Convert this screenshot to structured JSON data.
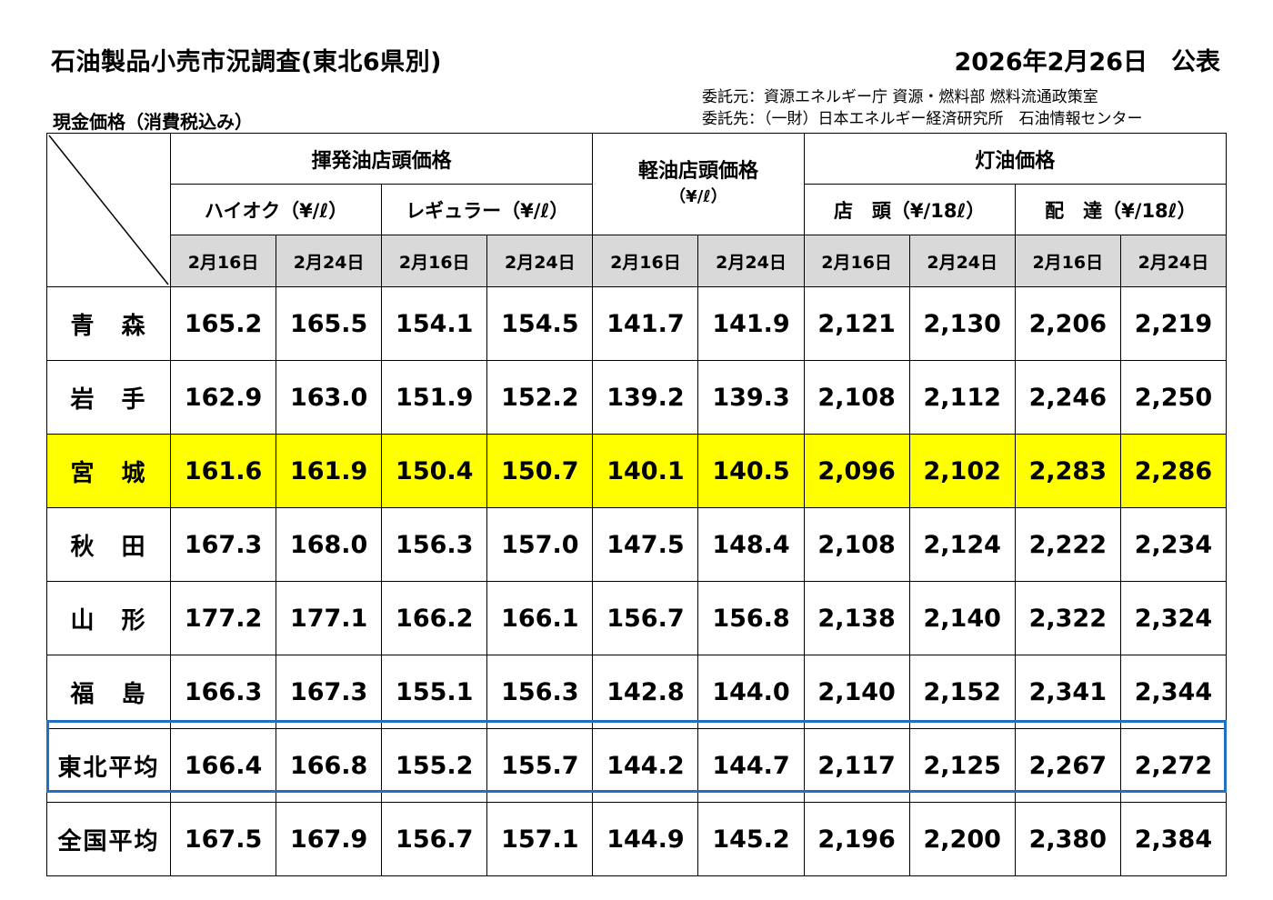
{
  "header": {
    "title": "石油製品小売市況調査(東北6県別)",
    "date": "2026年2月26日",
    "published": "公表",
    "subtitle": "現金価格（消費税込み）",
    "commissioned_by": "委託元：資源エネルギー庁 資源・燃料部 燃料流通政策室",
    "commissioned_to": "委託先：（一財）日本エネルギー経済研究所　石油情報センター"
  },
  "columns": {
    "gasoline": "揮発油店頭価格",
    "high_octane": "ハイオク（¥/ℓ）",
    "regular": "レギュラー（¥/ℓ）",
    "diesel": "軽油店頭価格",
    "diesel_unit": "（¥/ℓ）",
    "kerosene": "灯油価格",
    "kerosene_store": "店　頭（¥/18ℓ）",
    "kerosene_delivery": "配　達（¥/18ℓ）",
    "dates": [
      "2月16日",
      "2月24日",
      "2月16日",
      "2月24日",
      "2月16日",
      "2月24日",
      "2月16日",
      "2月24日",
      "2月16日",
      "2月24日"
    ]
  },
  "rows": [
    {
      "name": "青　森",
      "values": [
        "165.2",
        "165.5",
        "154.1",
        "154.5",
        "141.7",
        "141.9",
        "2,121",
        "2,130",
        "2,206",
        "2,219"
      ]
    },
    {
      "name": "岩　手",
      "values": [
        "162.9",
        "163.0",
        "151.9",
        "152.2",
        "139.2",
        "139.3",
        "2,108",
        "2,112",
        "2,246",
        "2,250"
      ]
    },
    {
      "name": "宮　城",
      "values": [
        "161.6",
        "161.9",
        "150.4",
        "150.7",
        "140.1",
        "140.5",
        "2,096",
        "2,102",
        "2,283",
        "2,286"
      ]
    },
    {
      "name": "秋　田",
      "values": [
        "167.3",
        "168.0",
        "156.3",
        "157.0",
        "147.5",
        "148.4",
        "2,108",
        "2,124",
        "2,222",
        "2,234"
      ]
    },
    {
      "name": "山　形",
      "values": [
        "177.2",
        "177.1",
        "166.2",
        "166.1",
        "156.7",
        "156.8",
        "2,138",
        "2,140",
        "2,322",
        "2,324"
      ]
    },
    {
      "name": "福　島",
      "values": [
        "166.3",
        "167.3",
        "155.1",
        "156.3",
        "142.8",
        "144.0",
        "2,140",
        "2,152",
        "2,341",
        "2,344"
      ]
    },
    {
      "name": "東北平均",
      "values": [
        "166.4",
        "166.8",
        "155.2",
        "155.7",
        "144.2",
        "144.7",
        "2,117",
        "2,125",
        "2,267",
        "2,272"
      ]
    },
    {
      "name": "全国平均",
      "values": [
        "167.5",
        "167.9",
        "156.7",
        "157.1",
        "144.9",
        "145.2",
        "2,196",
        "2,200",
        "2,380",
        "2,384"
      ]
    }
  ],
  "colors": {
    "highlight_row": "#ffff00",
    "average_outline": "#1f6fc5",
    "date_row_bg": "#d9d9d9"
  }
}
